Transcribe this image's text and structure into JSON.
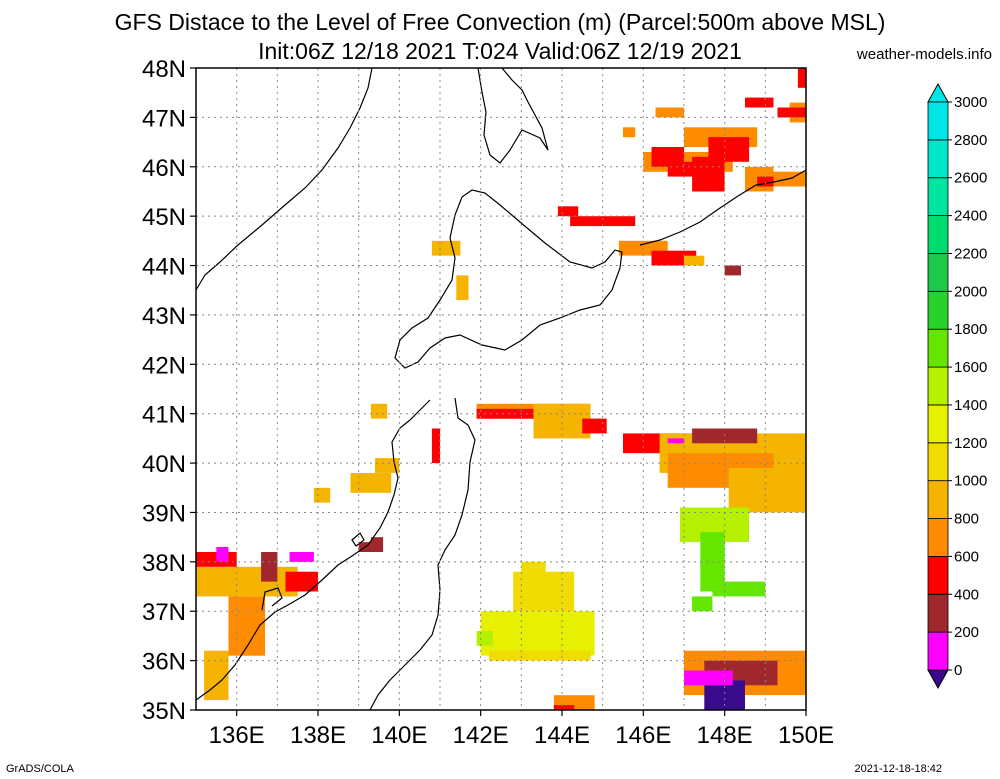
{
  "header": {
    "title_line1": "GFS Distace to the Level of Free Convection (m) (Parcel:500m above MSL)",
    "title_line2": "Init:06Z 12/18 2021 T:024 Valid:06Z 12/19 2021",
    "site": "weather-models.info"
  },
  "footer": {
    "left": "GrADS/COLA",
    "right": "2021-12-18-18:42"
  },
  "map": {
    "lon_range": [
      135,
      150
    ],
    "lat_range": [
      35,
      48
    ],
    "lat_labels": [
      "35N",
      "36N",
      "37N",
      "38N",
      "39N",
      "40N",
      "41N",
      "42N",
      "43N",
      "44N",
      "45N",
      "46N",
      "47N",
      "48N"
    ],
    "lon_labels": [
      "136E",
      "138E",
      "140E",
      "142E",
      "144E",
      "146E",
      "148E",
      "150E"
    ]
  },
  "colorbar": {
    "labels": [
      "0",
      "200",
      "400",
      "600",
      "800",
      "1000",
      "1200",
      "1400",
      "1600",
      "1800",
      "2000",
      "2200",
      "2400",
      "2600",
      "2800",
      "3000"
    ],
    "colors": [
      "#3a0a8c",
      "#ff00ff",
      "#a0282d",
      "#ff0000",
      "#ff8c00",
      "#f5b400",
      "#f0dc00",
      "#e6f000",
      "#b4f000",
      "#64e600",
      "#28d228",
      "#1ec84b",
      "#00dc6e",
      "#00e6a0",
      "#00e6c8",
      "#00e6e6"
    ]
  }
}
